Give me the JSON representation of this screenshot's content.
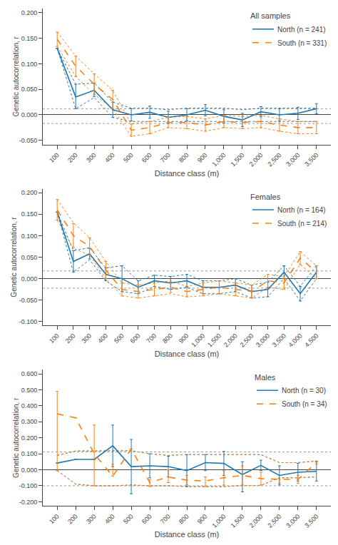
{
  "chart_data": [
    {
      "type": "line",
      "title": "All samples",
      "xlabel": "Distance class (m)",
      "ylabel": "Genetic autocorrelation, r",
      "legend": "upper right",
      "grid": false,
      "categories": [
        "100",
        "200",
        "300",
        "400",
        "500",
        "600",
        "700",
        "800",
        "900",
        "1,000",
        "1,500",
        "2,000",
        "2,500",
        "3,000",
        "3,500"
      ],
      "ylim": [
        -0.058,
        0.208
      ],
      "yticks": [
        {
          "value": -0.05,
          "label": "-0.050"
        },
        {
          "value": 0,
          "label": "0.000"
        },
        {
          "value": 0.05,
          "label": "0.050"
        },
        {
          "value": 0.1,
          "label": "0.100"
        },
        {
          "value": 0.15,
          "label": "0.150"
        },
        {
          "value": 0.2,
          "label": "0.200"
        }
      ],
      "ci_upper": 0.012,
      "ci_lower": -0.017,
      "series": [
        {
          "name": "North (n = 241)",
          "color": "#1f77b4",
          "line_style": "solid",
          "values": [
            0.13,
            0.035,
            0.048,
            0.01,
            0.0,
            0.005,
            -0.005,
            0.0,
            0.009,
            -0.003,
            -0.01,
            0.006,
            0.0,
            0.003,
            0.012
          ],
          "error_plus": [
            0.0,
            0.025,
            0.014,
            0.015,
            0.012,
            0.012,
            0.012,
            0.012,
            0.011,
            0.013,
            0.013,
            0.01,
            0.012,
            0.012,
            0.01
          ],
          "error_minus": [
            0.0,
            0.023,
            0.012,
            0.015,
            0.012,
            0.012,
            0.012,
            0.012,
            0.011,
            0.013,
            0.013,
            0.01,
            0.012,
            0.012,
            0.01
          ],
          "envelope_upper": [
            0.13,
            0.06,
            0.062,
            0.025,
            0.013,
            0.013,
            0.01,
            0.013,
            0.013,
            0.013,
            0.01,
            0.013,
            0.013,
            0.013,
            0.013
          ],
          "envelope_lower": [
            0.13,
            0.012,
            0.034,
            -0.005,
            -0.013,
            -0.013,
            -0.013,
            -0.013,
            -0.013,
            -0.013,
            -0.013,
            -0.013,
            -0.013,
            -0.013,
            -0.013
          ]
        },
        {
          "name": "South (n = 331)",
          "color": "#ff7f0e",
          "line_style": "dashed",
          "values": [
            0.148,
            0.095,
            0.06,
            0.03,
            -0.03,
            -0.025,
            -0.015,
            -0.015,
            -0.02,
            -0.013,
            -0.015,
            -0.013,
            -0.02,
            -0.025,
            -0.025
          ],
          "error_plus": [
            0.014,
            0.02,
            0.02,
            0.018,
            0.012,
            0.012,
            0.01,
            0.012,
            0.012,
            0.012,
            0.012,
            0.012,
            0.012,
            0.012,
            0.012
          ],
          "error_minus": [
            0.014,
            0.02,
            0.02,
            0.018,
            0.012,
            0.012,
            0.01,
            0.012,
            0.012,
            0.012,
            0.012,
            0.012,
            0.012,
            0.012,
            0.012
          ],
          "envelope_upper": [
            0.162,
            0.115,
            0.08,
            0.048,
            -0.018,
            -0.013,
            -0.005,
            -0.003,
            -0.008,
            -0.001,
            -0.003,
            -0.001,
            -0.008,
            -0.013,
            -0.013
          ],
          "envelope_lower": [
            0.134,
            0.075,
            0.04,
            0.012,
            -0.042,
            -0.037,
            -0.025,
            -0.027,
            -0.032,
            -0.025,
            -0.027,
            -0.025,
            -0.032,
            -0.037,
            -0.037
          ]
        }
      ]
    },
    {
      "type": "line",
      "title": "Females",
      "xlabel": "Distance class (m)",
      "ylabel": "Genetic autocorrelation, r",
      "legend": "upper right",
      "grid": false,
      "categories": [
        "100",
        "200",
        "300",
        "400",
        "500",
        "600",
        "700",
        "800",
        "900",
        "1,000",
        "1,500",
        "2,000",
        "2,500",
        "3,000",
        "3,500",
        "4,000",
        "4,500"
      ],
      "ylim": [
        -0.108,
        0.208
      ],
      "yticks": [
        {
          "value": -0.1,
          "label": "-0.100"
        },
        {
          "value": -0.05,
          "label": "-0.050"
        },
        {
          "value": 0,
          "label": "0.000"
        },
        {
          "value": 0.05,
          "label": "0.050"
        },
        {
          "value": 0.1,
          "label": "0.100"
        },
        {
          "value": 0.15,
          "label": "0.150"
        },
        {
          "value": 0.2,
          "label": "0.200"
        }
      ],
      "ci_upper": 0.018,
      "ci_lower": -0.022,
      "series": [
        {
          "name": "North (n = 164)",
          "color": "#1f77b4",
          "line_style": "solid",
          "values": [
            0.155,
            0.04,
            0.058,
            0.01,
            0.0,
            -0.02,
            -0.005,
            -0.01,
            -0.005,
            -0.02,
            -0.02,
            -0.015,
            -0.03,
            -0.025,
            0.015,
            -0.035,
            0.015
          ],
          "error_plus": [
            0.0,
            0.025,
            0.012,
            0.015,
            0.03,
            0.015,
            0.013,
            0.015,
            0.015,
            0.015,
            0.015,
            0.015,
            0.015,
            0.017,
            0.015,
            0.017,
            0.015
          ],
          "error_minus": [
            0.0,
            0.025,
            0.012,
            0.015,
            0.03,
            0.015,
            0.013,
            0.015,
            0.015,
            0.015,
            0.015,
            0.015,
            0.015,
            0.017,
            0.015,
            0.017,
            0.015
          ],
          "envelope_upper": [
            0.155,
            0.065,
            0.072,
            0.025,
            0.03,
            -0.005,
            0.008,
            0.005,
            0.01,
            -0.005,
            -0.005,
            0.0,
            -0.015,
            -0.008,
            0.03,
            -0.018,
            0.03
          ],
          "envelope_lower": [
            0.155,
            0.015,
            0.044,
            -0.005,
            -0.03,
            -0.035,
            -0.018,
            -0.025,
            -0.02,
            -0.035,
            -0.035,
            -0.03,
            -0.045,
            -0.042,
            0.0,
            -0.052,
            0.0
          ]
        },
        {
          "name": "South (n = 214)",
          "color": "#ff7f0e",
          "line_style": "dashed",
          "values": [
            0.16,
            0.1,
            0.075,
            0.02,
            -0.025,
            -0.03,
            -0.025,
            -0.02,
            -0.03,
            -0.025,
            -0.02,
            -0.025,
            -0.03,
            -0.005,
            -0.01,
            0.048,
            0.015
          ],
          "error_plus": [
            0.024,
            0.028,
            0.02,
            0.02,
            0.015,
            0.015,
            0.015,
            0.012,
            0.012,
            0.015,
            0.015,
            0.015,
            0.015,
            0.015,
            0.015,
            0.015,
            0.015
          ],
          "error_minus": [
            0.024,
            0.028,
            0.02,
            0.02,
            0.015,
            0.015,
            0.015,
            0.012,
            0.012,
            0.015,
            0.015,
            0.015,
            0.015,
            0.015,
            0.015,
            0.015,
            0.015
          ],
          "envelope_upper": [
            0.184,
            0.13,
            0.095,
            0.04,
            -0.01,
            -0.015,
            -0.01,
            -0.005,
            -0.018,
            -0.01,
            -0.005,
            -0.01,
            -0.015,
            0.01,
            0.005,
            0.063,
            0.03
          ],
          "envelope_lower": [
            0.136,
            0.07,
            0.055,
            0.0,
            -0.04,
            -0.045,
            -0.04,
            -0.035,
            -0.042,
            -0.04,
            -0.035,
            -0.04,
            -0.045,
            -0.02,
            -0.025,
            0.033,
            0.0
          ]
        }
      ]
    },
    {
      "type": "line",
      "title": "Males",
      "xlabel": "Distance class (m)",
      "ylabel": "Genetic autocorrelation, r",
      "legend": "upper right",
      "grid": false,
      "categories": [
        "100",
        "200",
        "300",
        "400",
        "500",
        "600",
        "700",
        "800",
        "900",
        "1,000",
        "1,500",
        "2,000",
        "2,500",
        "3,000",
        "3,500"
      ],
      "ylim": [
        -0.225,
        0.625
      ],
      "yticks": [
        {
          "value": -0.2,
          "label": "-0.200"
        },
        {
          "value": -0.1,
          "label": "-0.100"
        },
        {
          "value": 0,
          "label": "0.000"
        },
        {
          "value": 0.1,
          "label": "0.100"
        },
        {
          "value": 0.2,
          "label": "0.200"
        },
        {
          "value": 0.3,
          "label": "0.300"
        },
        {
          "value": 0.4,
          "label": "0.400"
        },
        {
          "value": 0.5,
          "label": "0.500"
        },
        {
          "value": 0.6,
          "label": "0.600"
        }
      ],
      "ci_upper": 0.112,
      "ci_lower": -0.1,
      "series": [
        {
          "name": "North (n = 30)",
          "color": "#1f77b4",
          "line_style": "solid",
          "values": [
            0.042,
            0.065,
            0.065,
            0.15,
            0.02,
            0.025,
            0.02,
            -0.005,
            0.045,
            0.04,
            -0.03,
            0.028,
            -0.035,
            -0.015,
            -0.01
          ],
          "error_plus": [
            0.0,
            0.0,
            0.0,
            0.13,
            0.17,
            0.075,
            0.065,
            0.1,
            0.05,
            0.075,
            0.08,
            0.032,
            0.06,
            0.055,
            0.06
          ],
          "error_minus": [
            0.0,
            0.0,
            0.0,
            0.13,
            0.17,
            0.075,
            0.065,
            0.1,
            0.05,
            0.075,
            0.108,
            0.032,
            0.06,
            0.055,
            0.06
          ],
          "envelope_upper": [
            0.09,
            0.118,
            0.118,
            0.118,
            0.12,
            0.1,
            0.09,
            0.095,
            0.095,
            0.095,
            0.095,
            0.095,
            0.045,
            0.045,
            0.055
          ],
          "envelope_lower": [
            -0.005,
            -0.09,
            -0.1,
            -0.1,
            -0.095,
            -0.1,
            -0.1,
            -0.105,
            -0.105,
            -0.105,
            -0.098,
            -0.098,
            -0.05,
            -0.05,
            -0.044
          ]
        },
        {
          "name": "South (n = 34)",
          "color": "#ff7f0e",
          "line_style": "dashed",
          "values": [
            0.35,
            0.325,
            0.1,
            -0.04,
            0.13,
            -0.08,
            -0.045,
            -0.065,
            -0.07,
            -0.05,
            -0.035,
            -0.055,
            -0.06,
            -0.06,
            0.045
          ],
          "error_plus": [
            0.14,
            0.0,
            0.18,
            0.075,
            0.0,
            0.02,
            0.045,
            0.03,
            0.025,
            0.045,
            0.06,
            0.04,
            0.0,
            0.025,
            0.01
          ],
          "error_minus": [
            0.355,
            0.0,
            0.2,
            0.0,
            0.0,
            0.025,
            0.035,
            0.03,
            0.035,
            0.045,
            0.06,
            0.04,
            0.025,
            0.025,
            0.01
          ],
          "envelope_upper": [
            0.09,
            0.118,
            0.118,
            0.118,
            0.12,
            0.1,
            0.09,
            0.095,
            0.095,
            0.095,
            0.095,
            0.095,
            0.045,
            0.045,
            0.055
          ],
          "envelope_lower": [
            -0.005,
            -0.09,
            -0.1,
            -0.1,
            -0.095,
            -0.1,
            -0.1,
            -0.105,
            -0.105,
            -0.105,
            -0.098,
            -0.098,
            -0.05,
            -0.05,
            -0.044
          ]
        }
      ]
    }
  ]
}
